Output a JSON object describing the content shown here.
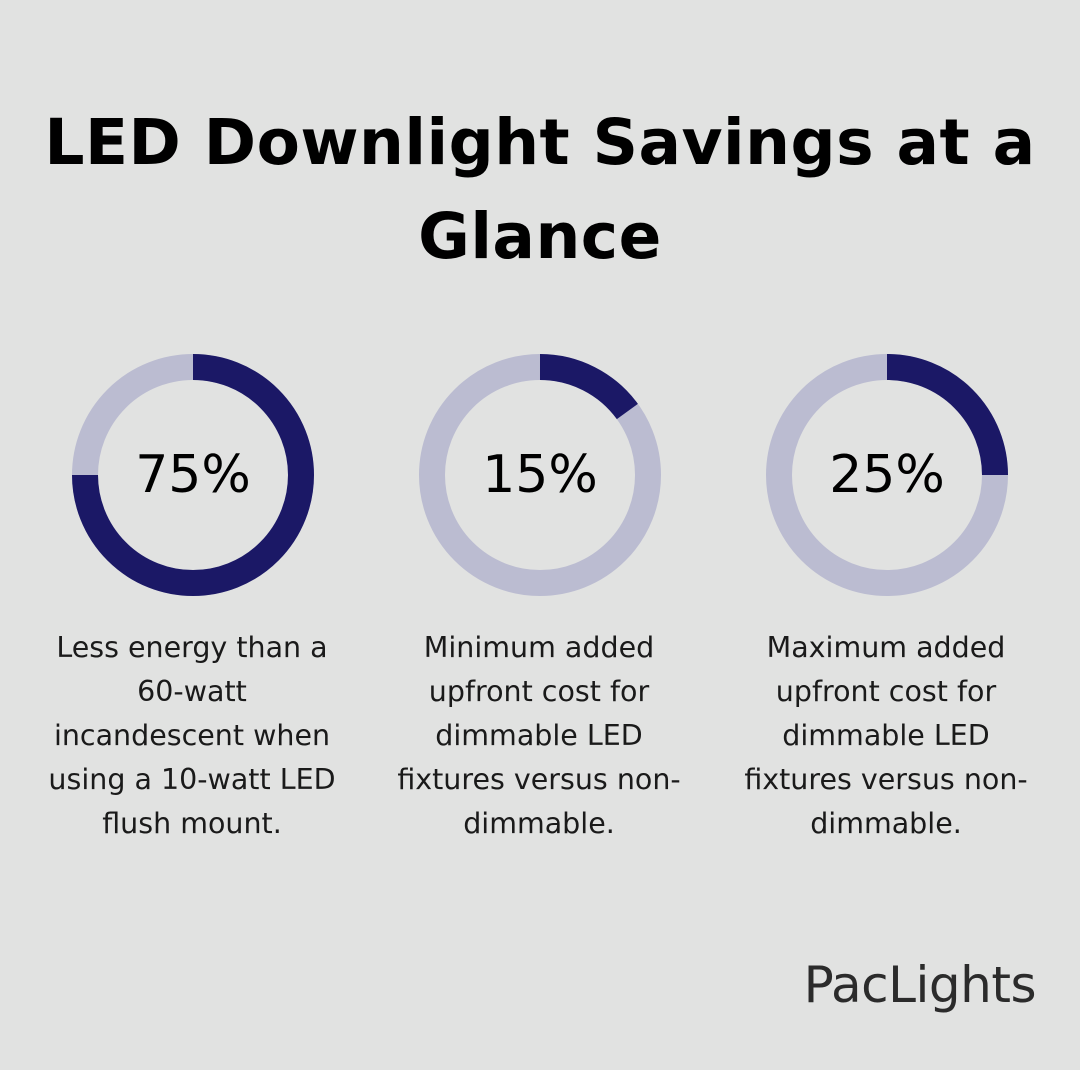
{
  "title": "LED Downlight Savings at a Glance",
  "colors": {
    "background": "#e1e2e1",
    "filled": "#1b1866",
    "track": "#bbbcd1",
    "text": "#000000"
  },
  "chart_data": {
    "type": "pie",
    "variant": "donut-progress",
    "items": [
      {
        "value": 75,
        "label": "75%",
        "description": "Less energy than a 60-watt incandescent when using a 10-watt LED flush mount."
      },
      {
        "value": 15,
        "label": "15%",
        "description": "Minimum added upfront cost for dimmable LED fixtures versus non-dimmable."
      },
      {
        "value": 25,
        "label": "25%",
        "description": "Maximum added upfront cost for dimmable LED fixtures versus non-dimmable."
      }
    ]
  },
  "logo": "PacLights"
}
